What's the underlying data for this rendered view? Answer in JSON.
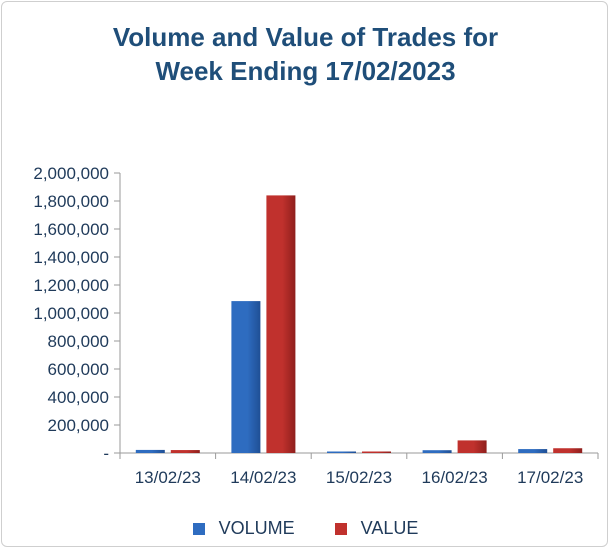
{
  "chart_data": {
    "type": "bar",
    "title_lines": [
      "Volume and Value of Trades for",
      "Week Ending 17/02/2023"
    ],
    "categories": [
      "13/02/23",
      "14/02/23",
      "15/02/23",
      "16/02/23",
      "17/02/23"
    ],
    "series": [
      {
        "name": "VOLUME",
        "color": "#2e6cc0",
        "values": [
          22000,
          1085000,
          5000,
          20000,
          28000
        ]
      },
      {
        "name": "VALUE",
        "color": "#c0312d",
        "values": [
          21000,
          1840000,
          10000,
          90000,
          34000
        ]
      }
    ],
    "ylim": [
      0,
      2000000
    ],
    "y_ticks": [
      0,
      200000,
      400000,
      600000,
      800000,
      1000000,
      1200000,
      1400000,
      1600000,
      1800000,
      2000000
    ],
    "y_tick_labels": [
      "-",
      "200,000",
      "400,000",
      "600,000",
      "800,000",
      "1,000,000",
      "1,200,000",
      "1,400,000",
      "1,600,000",
      "1,800,000",
      "2,000,000"
    ],
    "grid": false,
    "legend_position": "bottom"
  }
}
